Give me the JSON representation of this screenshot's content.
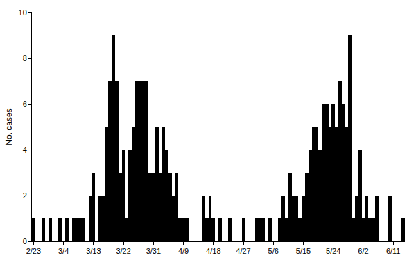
{
  "chart_data": {
    "type": "bar",
    "y_label": "No. cases",
    "color": "#000000",
    "grid": false,
    "categories": [
      "2/23",
      null,
      null,
      null,
      null,
      null,
      null,
      null,
      null,
      "3/4",
      null,
      null,
      null,
      null,
      null,
      null,
      null,
      null,
      "3/13",
      null,
      null,
      null,
      null,
      null,
      null,
      null,
      null,
      "3/22",
      null,
      null,
      null,
      null,
      null,
      null,
      null,
      null,
      "3/31",
      null,
      null,
      null,
      null,
      null,
      null,
      null,
      null,
      "4/9",
      null,
      null,
      null,
      null,
      null,
      null,
      null,
      null,
      "4/18",
      null,
      null,
      null,
      null,
      null,
      null,
      null,
      null,
      "4/27",
      null,
      null,
      null,
      null,
      null,
      null,
      null,
      null,
      "5/6",
      null,
      null,
      null,
      null,
      null,
      null,
      null,
      null,
      "5/15",
      null,
      null,
      null,
      null,
      null,
      null,
      null,
      null,
      "5/24",
      null,
      null,
      null,
      null,
      null,
      null,
      null,
      null,
      "6/2",
      null,
      null,
      null,
      null,
      null,
      null,
      null,
      null,
      "6/11",
      null,
      null,
      null
    ],
    "values": [
      1,
      0,
      0,
      1,
      0,
      1,
      0,
      0,
      1,
      0,
      1,
      0,
      1,
      1,
      1,
      1,
      0,
      2,
      3,
      0,
      2,
      2,
      5,
      7,
      9,
      7,
      3,
      4,
      1,
      4,
      5,
      7,
      7,
      7,
      7,
      3,
      3,
      5,
      3,
      5,
      4,
      3,
      2,
      3,
      1,
      1,
      1,
      0,
      0,
      0,
      0,
      2,
      1,
      2,
      1,
      0,
      1,
      0,
      0,
      1,
      0,
      0,
      0,
      1,
      0,
      0,
      0,
      1,
      1,
      1,
      0,
      1,
      0,
      0,
      1,
      2,
      1,
      3,
      2,
      2,
      1,
      2,
      3,
      4,
      5,
      5,
      4,
      6,
      6,
      5,
      6,
      5,
      7,
      6,
      5,
      9,
      1,
      2,
      4,
      1,
      2,
      1,
      1,
      2,
      0,
      0,
      0,
      2,
      0,
      0,
      0,
      1
    ],
    "ylim": [
      0,
      10
    ],
    "yticks": [
      0,
      2,
      4,
      6,
      8,
      10
    ]
  }
}
